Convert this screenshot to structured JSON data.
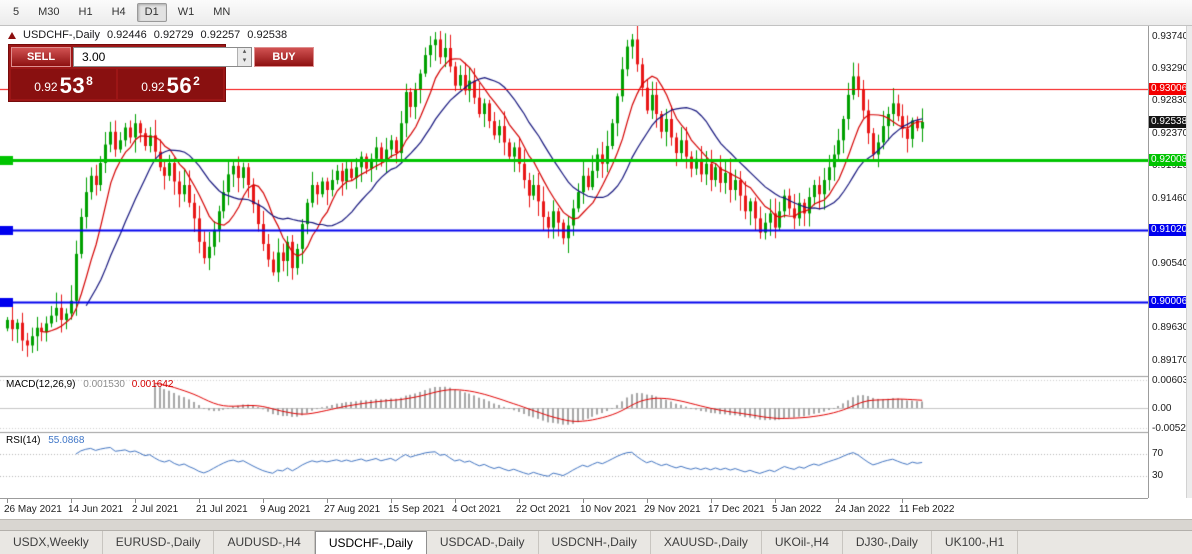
{
  "toolbar": {
    "timeframes": [
      {
        "label": "5",
        "active": false
      },
      {
        "label": "M30",
        "active": false
      },
      {
        "label": "H1",
        "active": false
      },
      {
        "label": "H4",
        "active": false
      },
      {
        "label": "D1",
        "active": true
      },
      {
        "label": "W1",
        "active": false
      },
      {
        "label": "MN",
        "active": false
      }
    ]
  },
  "header": {
    "title": "USDCHF-,Daily",
    "open": "0.92446",
    "high": "0.92729",
    "low": "0.92257",
    "close": "0.92538"
  },
  "trade_panel": {
    "sell_label": "SELL",
    "buy_label": "BUY",
    "volume": "3.00",
    "sell_price": {
      "prefix": "0.92",
      "big": "53",
      "sup": "8"
    },
    "buy_price": {
      "prefix": "0.92",
      "big": "56",
      "sup": "2"
    }
  },
  "indicator_labels": {
    "macd": {
      "name": "MACD(12,26,9)",
      "main_value": "0.001530",
      "signal_value": "0.001642"
    },
    "rsi": {
      "name": "RSI(14)",
      "value": "55.0868"
    }
  },
  "price_axis": {
    "ticks": [
      {
        "label": "0.93740",
        "price": 0.9374
      },
      {
        "label": "0.93290",
        "price": 0.9329
      },
      {
        "label": "0.92830",
        "price": 0.9283
      },
      {
        "label": "0.92370",
        "price": 0.9237
      },
      {
        "label": "0.91920",
        "price": 0.9192
      },
      {
        "label": "0.91460",
        "price": 0.9146
      },
      {
        "label": "0.90540",
        "price": 0.9054
      },
      {
        "label": "0.89630",
        "price": 0.8963
      },
      {
        "label": "0.89170",
        "price": 0.8917
      }
    ],
    "tags": [
      {
        "label": "0.93006",
        "price": 0.93006,
        "bg": "#f40000"
      },
      {
        "label": "0.92538",
        "price": 0.92538,
        "bg": "#141414"
      },
      {
        "label": "0.92008",
        "price": 0.92008,
        "bg": "#00c400"
      },
      {
        "label": "0.91020",
        "price": 0.9102,
        "bg": "#0000ee"
      },
      {
        "label": "0.90006",
        "price": 0.90006,
        "bg": "#0000ee"
      }
    ]
  },
  "macd_axis": {
    "top": "0.006038",
    "zero": "0.00",
    "bottom": "-0.005224"
  },
  "rsi_axis": {
    "upper": "70",
    "lower": "30"
  },
  "time_axis": {
    "labels": [
      "26 May 2021",
      "14 Jun 2021",
      "2 Jul 2021",
      "21 Jul 2021",
      "9 Aug 2021",
      "27 Aug 2021",
      "15 Sep 2021",
      "4 Oct 2021",
      "22 Oct 2021",
      "10 Nov 2021",
      "29 Nov 2021",
      "17 Dec 2021",
      "5 Jan 2022",
      "24 Jan 2022",
      "11 Feb 2022"
    ],
    "indices": [
      0,
      13,
      26,
      39,
      52,
      65,
      78,
      91,
      104,
      117,
      130,
      143,
      156,
      169,
      182
    ]
  },
  "tabs": {
    "items": [
      {
        "label": "USDX,Weekly",
        "active": false
      },
      {
        "label": "EURUSD-,Daily",
        "active": false
      },
      {
        "label": "AUDUSD-,H4",
        "active": false
      },
      {
        "label": "USDCHF-,Daily",
        "active": true
      },
      {
        "label": "USDCAD-,Daily",
        "active": false
      },
      {
        "label": "USDCNH-,Daily",
        "active": false
      },
      {
        "label": "XAUUSD-,Daily",
        "active": false
      },
      {
        "label": "UKOil-,H4",
        "active": false
      },
      {
        "label": "DJ30-,Daily",
        "active": false
      },
      {
        "label": "UK100-,H1",
        "active": false
      }
    ]
  },
  "chart_data": [
    {
      "type": "candlestick",
      "symbol": "USDCHF-",
      "timeframe": "Daily",
      "ylim": [
        0.8896,
        0.9389
      ],
      "colors": {
        "up": "#00a000",
        "down": "#e81717",
        "ma_fast": "#d40000",
        "ma_slow": "#15157d"
      },
      "moving_averages": [
        {
          "type": "sma",
          "period": 8,
          "color": "#d40000"
        },
        {
          "type": "sma",
          "period": 17,
          "color": "#15157d"
        }
      ],
      "hlines": [
        {
          "price": 0.93006,
          "color": "#f40000",
          "width": 1,
          "left_tag": false
        },
        {
          "price": 0.92008,
          "color": "#00c400",
          "width": 3,
          "left_tag": true
        },
        {
          "price": 0.9102,
          "color": "#0000ee",
          "width": 2,
          "left_tag": true
        },
        {
          "price": 0.90006,
          "color": "#0000ee",
          "width": 2,
          "left_tag": true
        }
      ],
      "last_candle": {
        "open": 0.92446,
        "high": 0.92729,
        "low": 0.92257,
        "close": 0.92538
      },
      "closes": [
        0.8975,
        0.8962,
        0.8971,
        0.8946,
        0.8939,
        0.8952,
        0.8964,
        0.8958,
        0.897,
        0.8981,
        0.8992,
        0.8975,
        0.8984,
        0.9002,
        0.9068,
        0.912,
        0.9155,
        0.9178,
        0.9165,
        0.9196,
        0.9222,
        0.924,
        0.9215,
        0.9228,
        0.9246,
        0.9232,
        0.9252,
        0.9238,
        0.922,
        0.9235,
        0.9212,
        0.919,
        0.9178,
        0.9196,
        0.917,
        0.9152,
        0.9165,
        0.914,
        0.9118,
        0.9085,
        0.9062,
        0.9078,
        0.9102,
        0.9128,
        0.9155,
        0.918,
        0.9192,
        0.9175,
        0.919,
        0.9165,
        0.9138,
        0.911,
        0.9082,
        0.906,
        0.9042,
        0.907,
        0.9058,
        0.9085,
        0.9048,
        0.9075,
        0.911,
        0.914,
        0.9165,
        0.9152,
        0.917,
        0.9158,
        0.9172,
        0.9185,
        0.917,
        0.9188,
        0.9175,
        0.919,
        0.9205,
        0.9188,
        0.9202,
        0.9218,
        0.92,
        0.9215,
        0.9228,
        0.921,
        0.9252,
        0.9296,
        0.9275,
        0.93,
        0.9322,
        0.9348,
        0.9362,
        0.937,
        0.9345,
        0.9358,
        0.9332,
        0.9305,
        0.932,
        0.9298,
        0.9312,
        0.9288,
        0.9265,
        0.928,
        0.9255,
        0.9235,
        0.9248,
        0.9225,
        0.9205,
        0.9218,
        0.9195,
        0.9172,
        0.915,
        0.9165,
        0.9142,
        0.912,
        0.9105,
        0.9128,
        0.9112,
        0.909,
        0.9108,
        0.9132,
        0.9155,
        0.9178,
        0.9162,
        0.9185,
        0.9208,
        0.9195,
        0.922,
        0.9252,
        0.929,
        0.9328,
        0.936,
        0.937,
        0.9335,
        0.9302,
        0.927,
        0.9292,
        0.9265,
        0.924,
        0.9258,
        0.9232,
        0.921,
        0.9228,
        0.9205,
        0.9188,
        0.9202,
        0.918,
        0.9195,
        0.9172,
        0.919,
        0.9168,
        0.9182,
        0.9158,
        0.9172,
        0.915,
        0.9128,
        0.9142,
        0.9118,
        0.9098,
        0.9112,
        0.9125,
        0.9105,
        0.9128,
        0.915,
        0.9132,
        0.9118,
        0.914,
        0.9125,
        0.9148,
        0.9165,
        0.9152,
        0.9172,
        0.919,
        0.9208,
        0.9228,
        0.9258,
        0.9292,
        0.9318,
        0.93,
        0.927,
        0.9238,
        0.9208,
        0.9225,
        0.9248,
        0.9265,
        0.928,
        0.9262,
        0.9244,
        0.923,
        0.9256,
        0.9245,
        0.92538
      ]
    },
    {
      "type": "macd_histogram",
      "label": "MACD(12,26,9)",
      "params": [
        12,
        26,
        9
      ],
      "displayed_values": [
        "0.001530",
        "0.001642"
      ],
      "axis_ticks": [
        "0.006038",
        "0.00",
        "-0.005224"
      ],
      "histogram_color": "#a6a6a6",
      "signal_color": "#e00000"
    },
    {
      "type": "line",
      "label": "RSI(14)",
      "period": 14,
      "displayed_value": "55.0868",
      "levels": [
        70,
        30
      ],
      "ylim": [
        0,
        100
      ],
      "line_color": "#4073c0"
    }
  ]
}
